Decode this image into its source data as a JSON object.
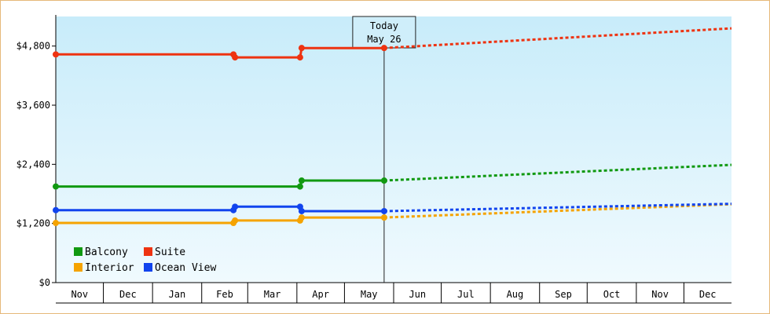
{
  "chart_data": {
    "type": "line",
    "title": "",
    "xlabel": "",
    "ylabel": "",
    "x_range": [
      "2023-11-01",
      "2024-12-31"
    ],
    "ylim": [
      0,
      5400
    ],
    "y_ticks": [
      {
        "value": 0,
        "label": "$0"
      },
      {
        "value": 1200,
        "label": "$1,200"
      },
      {
        "value": 2400,
        "label": "$2,400"
      },
      {
        "value": 3600,
        "label": "$3,600"
      },
      {
        "value": 4800,
        "label": "$4,800"
      }
    ],
    "months": [
      {
        "label": "Nov",
        "start": "2023-11-01",
        "end": "2023-12-01"
      },
      {
        "label": "Dec",
        "start": "2023-12-01",
        "end": "2024-01-01"
      },
      {
        "label": "Jan",
        "start": "2024-01-01",
        "end": "2024-02-01"
      },
      {
        "label": "Feb",
        "start": "2024-02-01",
        "end": "2024-03-01"
      },
      {
        "label": "Mar",
        "start": "2024-03-01",
        "end": "2024-04-01"
      },
      {
        "label": "Apr",
        "start": "2024-04-01",
        "end": "2024-05-01"
      },
      {
        "label": "May",
        "start": "2024-05-01",
        "end": "2024-06-01"
      },
      {
        "label": "Jun",
        "start": "2024-06-01",
        "end": "2024-07-01"
      },
      {
        "label": "Jul",
        "start": "2024-07-01",
        "end": "2024-08-01"
      },
      {
        "label": "Aug",
        "start": "2024-08-01",
        "end": "2024-09-01"
      },
      {
        "label": "Sep",
        "start": "2024-09-01",
        "end": "2024-10-01"
      },
      {
        "label": "Oct",
        "start": "2024-10-01",
        "end": "2024-11-01"
      },
      {
        "label": "Nov",
        "start": "2024-11-01",
        "end": "2024-12-01"
      },
      {
        "label": "Dec",
        "start": "2024-12-01",
        "end": "2024-12-31"
      }
    ],
    "today": {
      "line1": "Today",
      "line2": "May 26",
      "date": "2024-05-26"
    },
    "grid": false,
    "legend_position": "bottom-left",
    "background_gradient": [
      "#c8ecfa",
      "#f0fafe"
    ],
    "series": [
      {
        "name": "Balcony",
        "color": "#119911",
        "actual": [
          {
            "x": "2023-11-01",
            "y": 1950
          },
          {
            "x": "2024-04-03",
            "y": 1950
          },
          {
            "x": "2024-04-04",
            "y": 2070
          },
          {
            "x": "2024-05-26",
            "y": 2070
          }
        ],
        "markers": [
          "2023-11-01",
          "2024-04-03",
          "2024-04-04",
          "2024-05-26"
        ],
        "forecast": [
          {
            "x": "2024-05-26",
            "y": 2070
          },
          {
            "x": "2024-12-31",
            "y": 2390
          }
        ]
      },
      {
        "name": "Suite",
        "color": "#ee3311",
        "actual": [
          {
            "x": "2023-11-01",
            "y": 4630
          },
          {
            "x": "2024-02-21",
            "y": 4630
          },
          {
            "x": "2024-02-22",
            "y": 4570
          },
          {
            "x": "2024-04-03",
            "y": 4570
          },
          {
            "x": "2024-04-04",
            "y": 4760
          },
          {
            "x": "2024-05-26",
            "y": 4760
          }
        ],
        "markers": [
          "2023-11-01",
          "2024-02-21",
          "2024-02-22",
          "2024-04-03",
          "2024-04-04",
          "2024-05-26"
        ],
        "forecast": [
          {
            "x": "2024-05-26",
            "y": 4760
          },
          {
            "x": "2024-12-31",
            "y": 5160
          }
        ]
      },
      {
        "name": "Interior",
        "color": "#f5a300",
        "actual": [
          {
            "x": "2023-11-01",
            "y": 1210
          },
          {
            "x": "2024-02-21",
            "y": 1210
          },
          {
            "x": "2024-02-22",
            "y": 1260
          },
          {
            "x": "2024-04-03",
            "y": 1260
          },
          {
            "x": "2024-04-04",
            "y": 1320
          },
          {
            "x": "2024-05-26",
            "y": 1320
          }
        ],
        "markers": [
          "2023-11-01",
          "2024-02-21",
          "2024-02-22",
          "2024-04-03",
          "2024-04-04",
          "2024-05-26"
        ],
        "forecast": [
          {
            "x": "2024-05-26",
            "y": 1320
          },
          {
            "x": "2024-12-31",
            "y": 1590
          }
        ]
      },
      {
        "name": "Ocean View",
        "color": "#1144ee",
        "actual": [
          {
            "x": "2023-11-01",
            "y": 1470
          },
          {
            "x": "2024-02-21",
            "y": 1470
          },
          {
            "x": "2024-02-22",
            "y": 1540
          },
          {
            "x": "2024-04-03",
            "y": 1540
          },
          {
            "x": "2024-04-04",
            "y": 1450
          },
          {
            "x": "2024-05-26",
            "y": 1450
          }
        ],
        "markers": [
          "2023-11-01",
          "2024-02-21",
          "2024-02-22",
          "2024-04-03",
          "2024-04-04",
          "2024-05-26"
        ],
        "forecast": [
          {
            "x": "2024-05-26",
            "y": 1450
          },
          {
            "x": "2024-12-31",
            "y": 1600
          }
        ]
      }
    ]
  }
}
